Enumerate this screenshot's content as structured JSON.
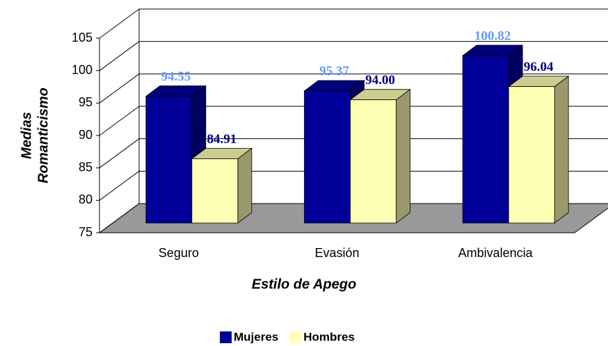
{
  "chart_data": {
    "type": "bar3d",
    "xlabel": "Estilo de Apego",
    "ylabel": [
      "Medias",
      "Romanticismo"
    ],
    "categories": [
      "Seguro",
      "Evasión",
      "Ambivalencia"
    ],
    "series": [
      {
        "name": "Mujeres",
        "color": "#000099",
        "side_color": "#000060",
        "top_color": "#00007a",
        "label_color": "#6699ff",
        "values": [
          94.55,
          95.37,
          100.82
        ],
        "value_labels": [
          "94.55",
          "95.37",
          "100.82"
        ]
      },
      {
        "name": "Hombres",
        "color": "#ffffb3",
        "side_color": "#99996b",
        "top_color": "#cccc8f",
        "label_color": "#000080",
        "values": [
          84.91,
          94.0,
          96.04
        ],
        "value_labels": [
          "84.91",
          "94.00",
          "96.04"
        ]
      }
    ],
    "ylim": [
      75,
      105
    ],
    "yticks": [
      75,
      80,
      85,
      90,
      95,
      100,
      105
    ],
    "grid": true,
    "floor_color": "#999999",
    "legend": "bottom"
  }
}
